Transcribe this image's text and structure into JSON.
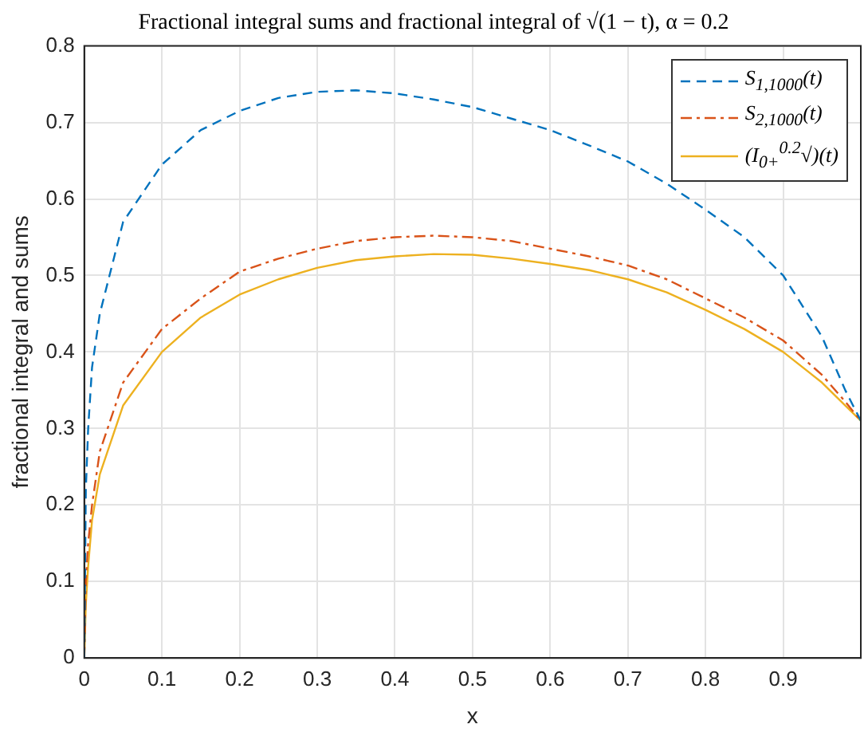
{
  "chart_data": {
    "type": "line",
    "title": "Fractional integral sums and fractional integral of √(1 − t), α = 0.2",
    "xlabel": "x",
    "ylabel": "fractional integral and sums",
    "x": [
      0,
      0.002,
      0.005,
      0.01,
      0.02,
      0.05,
      0.1,
      0.15,
      0.2,
      0.25,
      0.3,
      0.35,
      0.4,
      0.45,
      0.5,
      0.55,
      0.6,
      0.65,
      0.7,
      0.75,
      0.8,
      0.85,
      0.9,
      0.95,
      0.98,
      1
    ],
    "series": [
      {
        "name": "S$_{1,1000}$(t)",
        "color": "#0072bd",
        "line_style": "dashed",
        "values": [
          0,
          0.22,
          0.3,
          0.38,
          0.45,
          0.57,
          0.645,
          0.69,
          0.715,
          0.732,
          0.74,
          0.742,
          0.738,
          0.73,
          0.72,
          0.705,
          0.69,
          0.67,
          0.649,
          0.62,
          0.586,
          0.55,
          0.5,
          0.42,
          0.35,
          0.31
        ]
      },
      {
        "name": "S$_{2,1000}$(t)",
        "color": "#d95319",
        "line_style": "dashdot",
        "values": [
          0,
          0.1,
          0.15,
          0.2,
          0.27,
          0.36,
          0.43,
          0.47,
          0.505,
          0.522,
          0.535,
          0.545,
          0.55,
          0.552,
          0.55,
          0.545,
          0.535,
          0.525,
          0.513,
          0.495,
          0.47,
          0.445,
          0.415,
          0.37,
          0.335,
          0.31
        ]
      },
      {
        "name": "(I$_{0+}$$^{0.2}$√)(t)",
        "color": "#edb120",
        "line_style": "solid",
        "values": [
          0,
          0.07,
          0.12,
          0.18,
          0.24,
          0.33,
          0.4,
          0.445,
          0.475,
          0.495,
          0.51,
          0.52,
          0.525,
          0.528,
          0.527,
          0.522,
          0.515,
          0.507,
          0.495,
          0.478,
          0.455,
          0.43,
          0.4,
          0.36,
          0.33,
          0.31
        ]
      }
    ],
    "xlim": [
      0,
      1
    ],
    "xticks": [
      0,
      0.1,
      0.2,
      0.3,
      0.4,
      0.5,
      0.6,
      0.7,
      0.8,
      0.9
    ],
    "ylim": [
      0,
      0.8
    ],
    "yticks": [
      0,
      0.1,
      0.2,
      0.3,
      0.4,
      0.5,
      0.6,
      0.7,
      0.8
    ],
    "grid": true,
    "legend": "top right",
    "marker": "none"
  }
}
